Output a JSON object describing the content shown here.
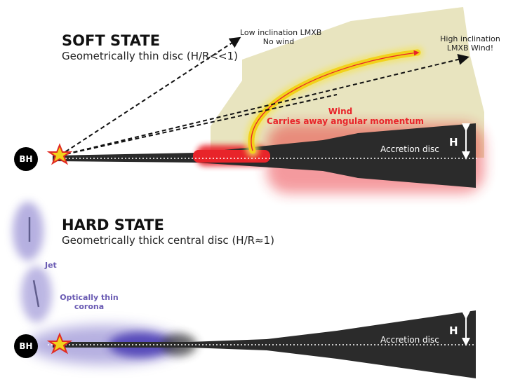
{
  "soft_state": {
    "title": "SOFT STATE",
    "subtitle": "Geometrically thin disc (H/R<<1)",
    "low_inclination": {
      "line1": "Low inclination LMXB",
      "line2": "No wind"
    },
    "high_inclination": {
      "line1": "High inclination",
      "line2": "LMXB Wind!"
    },
    "wind_label": {
      "line1": "Wind",
      "line2": "Carries away angular momentum"
    },
    "disc_label": "Accretion disc",
    "height_label": "H",
    "bh_label": "BH"
  },
  "hard_state": {
    "title": "HARD STATE",
    "subtitle": "Geometrically thick central disc (H/R≈1)",
    "jet_label": "Jet",
    "corona_label": {
      "line1": "Optically thin",
      "line2": "corona"
    },
    "disc_label": "Accretion disc",
    "height_label": "H",
    "bh_label": "BH"
  },
  "colors": {
    "wind_region": "#e8e4bf",
    "wind_red": "#e8242a",
    "disc": "#2b2b2b",
    "jet_purple": "#7a70c8",
    "star_fill": "#f2d21b",
    "star_stroke": "#e12a22"
  }
}
